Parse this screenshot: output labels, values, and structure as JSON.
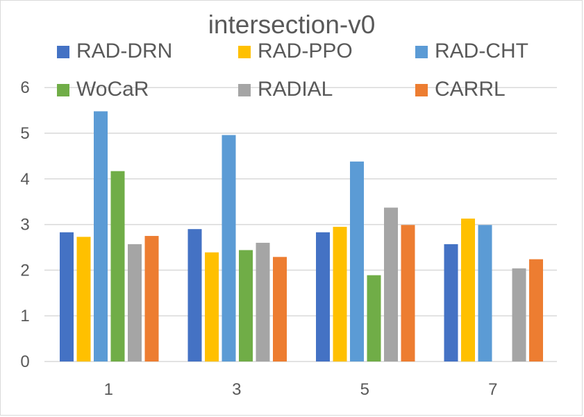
{
  "chart_data": {
    "type": "bar",
    "title": "intersection-v0",
    "xlabel": "",
    "ylabel": "",
    "categories": [
      "1",
      "3",
      "5",
      "7"
    ],
    "ylim": [
      0,
      6
    ],
    "yticks": [
      "0",
      "1",
      "2",
      "3",
      "4",
      "5",
      "6"
    ],
    "grid": true,
    "legend_position": "top",
    "series": [
      {
        "name": "RAD-DRN",
        "color": "#4472C4",
        "values": [
          2.83,
          2.9,
          2.83,
          2.57
        ]
      },
      {
        "name": "RAD-PPO",
        "color": "#FFC000",
        "values": [
          2.73,
          2.39,
          2.95,
          3.13
        ]
      },
      {
        "name": "RAD-CHT",
        "color": "#5B9BD5",
        "values": [
          5.48,
          4.96,
          4.38,
          2.99
        ]
      },
      {
        "name": "WoCaR",
        "color": "#70AD47",
        "values": [
          4.17,
          2.44,
          1.89,
          0
        ]
      },
      {
        "name": "RADIAL",
        "color": "#A5A5A5",
        "values": [
          2.57,
          2.6,
          3.37,
          2.04
        ]
      },
      {
        "name": "CARRL",
        "color": "#ED7D31",
        "values": [
          2.75,
          2.29,
          2.99,
          2.24
        ]
      }
    ]
  }
}
